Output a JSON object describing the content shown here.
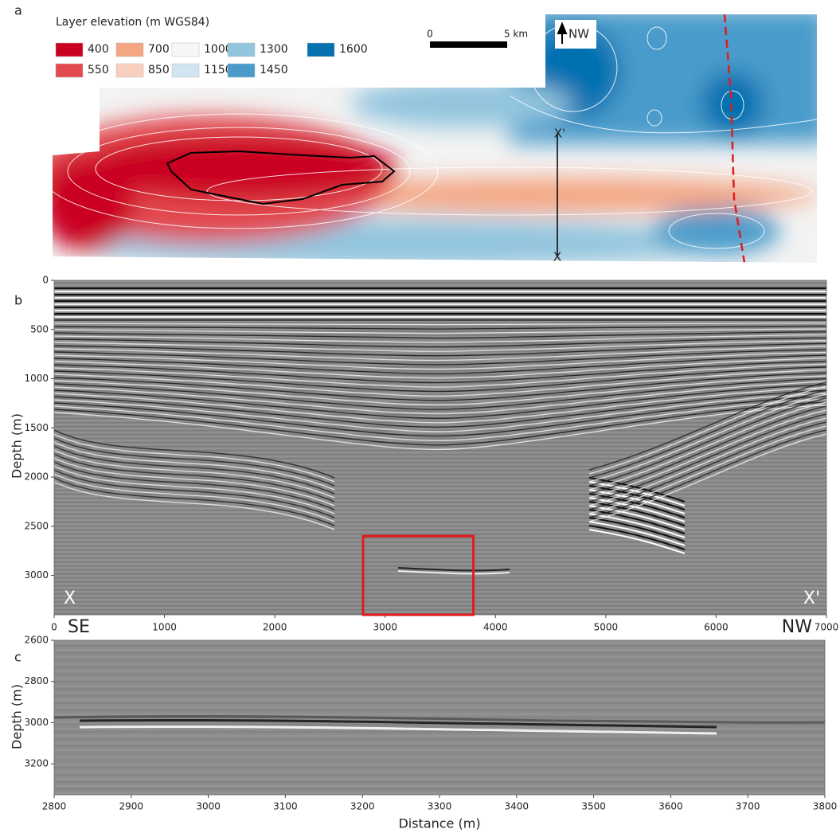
{
  "panel_a": {
    "letter": "a",
    "legend_title": "Layer elevation (m WGS84)",
    "legend": [
      {
        "label": "400",
        "color": "#ca0020"
      },
      {
        "label": "550",
        "color": "#e34a50"
      },
      {
        "label": "700",
        "color": "#f4a582"
      },
      {
        "label": "850",
        "color": "#f9d0c0"
      },
      {
        "label": "1000",
        "color": "#f7f7f7"
      },
      {
        "label": "1150",
        "color": "#d1e5f0"
      },
      {
        "label": "1300",
        "color": "#92c5de"
      },
      {
        "label": "1450",
        "color": "#4a9bcb"
      },
      {
        "label": "1600",
        "color": "#0571b0"
      }
    ],
    "scalebar": [
      "0",
      "5 km"
    ],
    "north": "NW",
    "section_start": "X",
    "section_end": "X'"
  },
  "panel_b": {
    "letter": "b",
    "ylabel": "Depth (m)",
    "ylim": [
      0,
      3400
    ],
    "yticks": [
      0,
      500,
      1000,
      1500,
      2000,
      2500,
      3000
    ],
    "xlim": [
      0,
      7000
    ],
    "xticks": [
      0,
      1000,
      2000,
      3000,
      4000,
      5000,
      6000,
      7000
    ],
    "corner_left": "X",
    "corner_right": "X'",
    "end_left": "SE",
    "end_right": "NW",
    "zoom_box": {
      "x": [
        2800,
        3800
      ],
      "y": [
        2600,
        3400
      ],
      "color": "#e31a1c"
    }
  },
  "panel_c": {
    "letter": "c",
    "ylabel": "Depth (m)",
    "xlabel": "Distance (m)",
    "ylim": [
      2600,
      3350
    ],
    "yticks": [
      2600,
      2800,
      3000,
      3200
    ],
    "xlim": [
      2800,
      3800
    ],
    "xticks": [
      2800,
      2900,
      3000,
      3100,
      3200,
      3300,
      3400,
      3500,
      3600,
      3700,
      3800
    ]
  }
}
